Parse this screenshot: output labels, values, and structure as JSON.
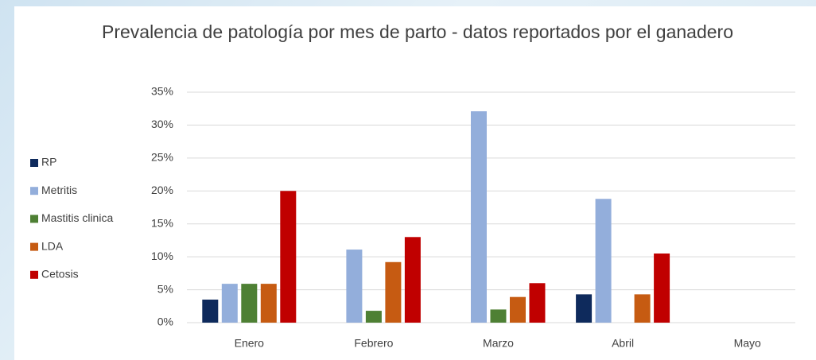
{
  "chart_data": {
    "type": "bar",
    "title": "Prevalencia de patología por mes de parto - datos reportados por el ganadero",
    "categories": [
      "Enero",
      "Febrero",
      "Marzo",
      "Abril",
      "Mayo"
    ],
    "series": [
      {
        "name": "RP",
        "color": "#0e2a5c",
        "values": [
          3.5,
          0,
          0,
          4.3,
          0
        ]
      },
      {
        "name": "Metritis",
        "color": "#93aedb",
        "values": [
          5.9,
          11.1,
          32.1,
          18.8,
          0
        ]
      },
      {
        "name": "Mastitis clinica",
        "color": "#4e8034",
        "values": [
          5.9,
          1.8,
          2,
          0,
          0
        ]
      },
      {
        "name": "LDA",
        "color": "#c65b12",
        "values": [
          5.9,
          9.2,
          3.9,
          4.3,
          0
        ]
      },
      {
        "name": "Cetosis",
        "color": "#c00000",
        "values": [
          20,
          13,
          6,
          10.5,
          0
        ]
      }
    ],
    "ylim": [
      0,
      35
    ],
    "yticks": [
      {
        "value": 0,
        "label": "0%"
      },
      {
        "value": 5,
        "label": "5%"
      },
      {
        "value": 10,
        "label": "10%"
      },
      {
        "value": 15,
        "label": "15%"
      },
      {
        "value": 20,
        "label": "20%"
      },
      {
        "value": 25,
        "label": "25%"
      },
      {
        "value": 30,
        "label": "30%"
      },
      {
        "value": 35,
        "label": "35%"
      }
    ],
    "grid": true,
    "legend": "left"
  }
}
